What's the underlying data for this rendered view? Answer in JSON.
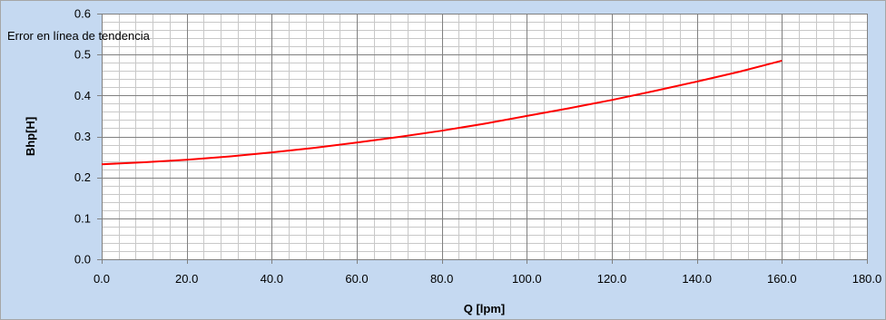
{
  "chart_data": {
    "type": "line",
    "title": "",
    "xlabel": "Q [lpm]",
    "ylabel": "Bhp[H]",
    "xlim": [
      0,
      180
    ],
    "ylim": [
      0,
      0.6
    ],
    "x_ticks": [
      "0.0",
      "20.0",
      "40.0",
      "60.0",
      "80.0",
      "100.0",
      "120.0",
      "140.0",
      "160.0",
      "180.0"
    ],
    "y_ticks": [
      "0.0",
      "0.1",
      "0.2",
      "0.3",
      "0.4",
      "0.5",
      "0.6"
    ],
    "grid": true,
    "annotation": "Error en línea de tendencia",
    "series": [
      {
        "color": "#ff0000",
        "x": [
          0,
          10,
          20,
          30,
          40,
          50,
          60,
          70,
          80,
          90,
          100,
          110,
          120,
          130,
          140,
          150,
          160
        ],
        "y": [
          0.232,
          0.237,
          0.243,
          0.251,
          0.261,
          0.272,
          0.285,
          0.299,
          0.314,
          0.331,
          0.35,
          0.369,
          0.389,
          0.411,
          0.434,
          0.458,
          0.485
        ]
      }
    ]
  }
}
